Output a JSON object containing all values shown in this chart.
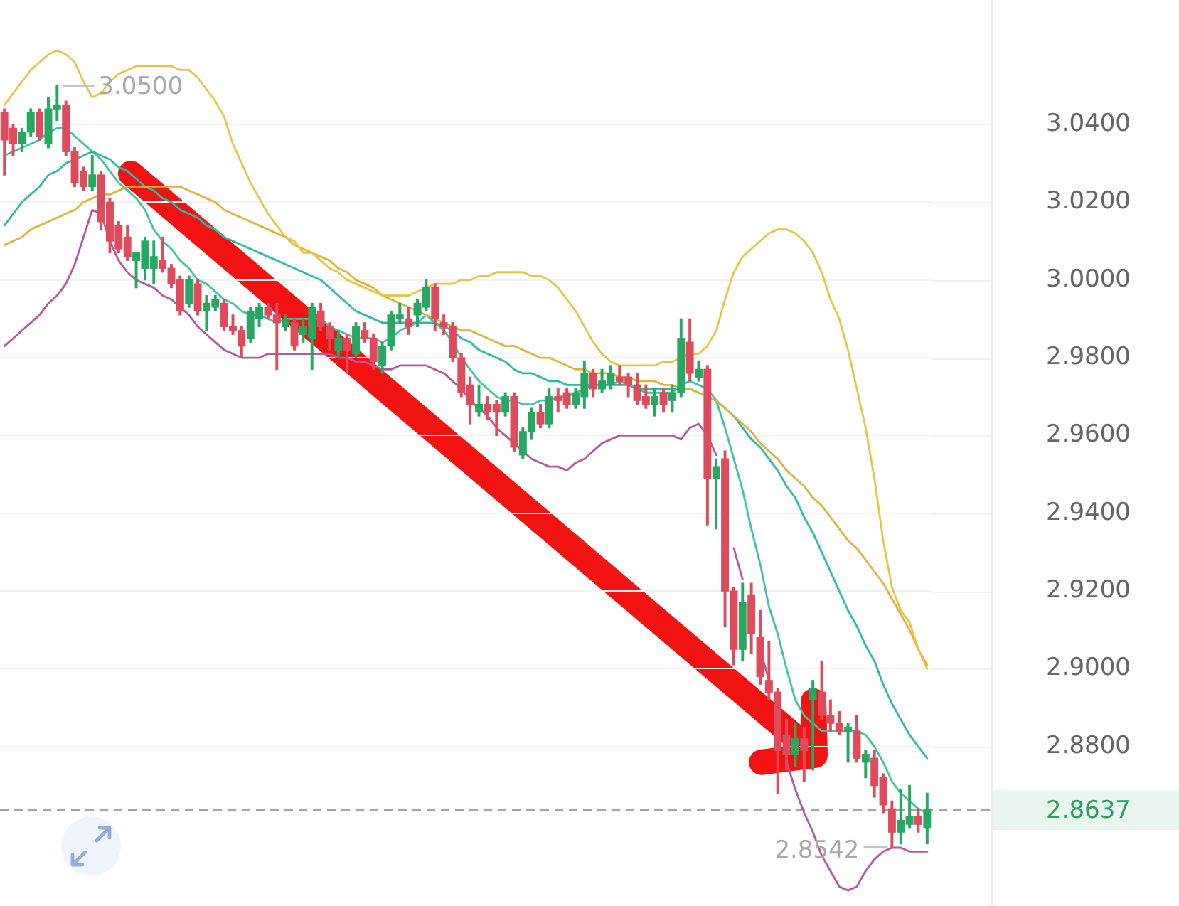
{
  "chart_data": {
    "type": "candlestick",
    "categories": [
      null,
      null,
      null,
      null,
      null,
      null,
      null,
      null,
      null,
      null,
      null,
      null,
      null,
      null,
      null,
      null,
      null,
      null,
      null,
      null,
      null,
      null,
      null,
      null,
      null,
      null,
      null,
      null,
      null,
      null,
      null,
      null,
      null,
      null,
      null,
      null,
      null,
      null,
      null,
      null,
      null,
      null,
      null,
      null,
      null,
      null,
      null,
      null,
      null,
      null,
      null,
      null,
      null,
      null,
      null,
      null,
      null,
      null,
      null,
      null,
      null,
      null,
      null,
      null,
      null,
      null,
      null,
      null,
      null,
      null,
      null,
      null,
      null,
      null,
      null,
      null,
      null,
      null,
      null,
      null,
      null,
      null,
      null,
      null,
      null,
      null,
      null,
      null,
      null,
      null,
      null,
      null,
      null,
      null,
      null,
      null,
      null,
      null,
      null,
      null,
      null,
      null,
      null,
      null,
      null,
      null
    ],
    "series": [
      {
        "type": "line",
        "color": "#e6c545",
        "values": [
          3.045,
          3.048,
          3.051,
          3.054,
          3.056,
          3.058,
          3.059,
          3.058,
          3.056,
          3.051,
          3.047,
          3.048,
          3.051,
          3.053,
          3.054,
          3.055,
          3.055,
          3.055,
          3.055,
          3.055,
          3.054,
          3.054,
          3.052,
          3.049,
          3.046,
          3.042,
          3.035,
          3.03,
          3.025,
          3.021,
          3.017,
          3.014,
          3.011,
          3.01,
          3.007,
          3.007,
          3.005,
          3.003,
          3.002,
          3,
          2.999,
          2.998,
          2.997,
          2.996,
          2.996,
          2.996,
          2.996,
          2.997,
          2.998,
          2.999,
          2.999,
          2.999,
          3,
          3,
          3.001,
          3.001,
          3.002,
          3.002,
          3.002,
          3.002,
          3.001,
          3.001,
          3,
          2.998,
          2.995,
          2.992,
          2.988,
          2.984,
          2.981,
          2.979,
          2.978,
          2.978,
          2.978,
          2.978,
          2.978,
          2.979,
          2.979,
          2.98,
          2.981,
          2.981,
          2.983,
          2.987,
          2.995,
          3.002,
          3.006,
          3.008,
          3.01,
          3.012,
          3.013,
          3.013,
          3.012,
          3.01,
          3.007,
          3.002,
          2.995,
          2.99,
          2.982,
          2.972,
          2.962,
          2.949,
          2.933,
          2.921,
          2.915,
          2.912,
          2.905,
          2.9
        ]
      },
      {
        "type": "line",
        "color": "#dcb43c",
        "values": [
          3.009,
          3.01,
          3.011,
          3.013,
          3.014,
          3.015,
          3.016,
          3.017,
          3.018,
          3.02,
          3.021,
          3.022,
          3.022,
          3.023,
          3.024,
          3.024,
          3.024,
          3.024,
          3.024,
          3.024,
          3.024,
          3.023,
          3.022,
          3.021,
          3.02,
          3.018,
          3.017,
          3.016,
          3.015,
          3.014,
          3.013,
          3.012,
          3.011,
          3.009,
          3.008,
          3.007,
          3.006,
          3.005,
          3.003,
          3.002,
          3,
          2.999,
          2.998,
          2.996,
          2.995,
          2.994,
          2.993,
          2.992,
          2.991,
          2.99,
          2.989,
          2.988,
          2.987,
          2.987,
          2.986,
          2.985,
          2.984,
          2.983,
          2.983,
          2.982,
          2.981,
          2.98,
          2.98,
          2.979,
          2.978,
          2.977,
          2.977,
          2.976,
          2.976,
          2.976,
          2.975,
          2.975,
          2.974,
          2.974,
          2.974,
          2.973,
          2.973,
          2.972,
          2.972,
          2.971,
          2.97,
          2.969,
          2.967,
          2.965,
          2.963,
          2.961,
          2.958,
          2.956,
          2.954,
          2.951,
          2.949,
          2.947,
          2.944,
          2.942,
          2.939,
          2.936,
          2.933,
          2.931,
          2.928,
          2.925,
          2.922,
          2.918,
          2.914,
          2.91,
          2.905,
          2.901
        ]
      },
      {
        "type": "line",
        "color": "#2fb9ab",
        "values": [
          3.014,
          3.017,
          3.02,
          3.022,
          3.024,
          3.027,
          3.028,
          3.03,
          3.031,
          3.032,
          3.033,
          3.032,
          3.031,
          3.029,
          3.028,
          3.026,
          3.024,
          3.023,
          3.021,
          3.02,
          3.018,
          3.017,
          3.016,
          3.014,
          3.013,
          3.011,
          3.01,
          3.009,
          3.008,
          3.007,
          3.006,
          3.005,
          3.004,
          3.003,
          3.002,
          3.001,
          3,
          2.998,
          2.996,
          2.994,
          2.992,
          2.991,
          2.99,
          2.989,
          2.989,
          2.989,
          2.989,
          2.989,
          2.989,
          2.989,
          2.988,
          2.987,
          2.985,
          2.984,
          2.982,
          2.981,
          2.98,
          2.979,
          2.977,
          2.976,
          2.976,
          2.975,
          2.974,
          2.974,
          2.973,
          2.973,
          2.973,
          2.973,
          2.973,
          2.973,
          2.973,
          2.973,
          2.972,
          2.972,
          2.972,
          2.972,
          2.972,
          2.972,
          2.972,
          2.971,
          2.97,
          2.969,
          2.967,
          2.965,
          2.962,
          2.959,
          2.957,
          2.954,
          2.951,
          2.947,
          2.944,
          2.939,
          2.935,
          2.93,
          2.925,
          2.92,
          2.915,
          2.911,
          2.906,
          2.902,
          2.896,
          2.891,
          2.887,
          2.883,
          2.88,
          2.877
        ]
      },
      {
        "type": "line",
        "color": "#3cc6a2",
        "values": [
          3.032,
          3.033,
          3.034,
          3.035,
          3.036,
          3.038,
          3.039,
          3.039,
          3.037,
          3.035,
          3.033,
          3.031,
          3.028,
          3.025,
          3.023,
          3.021,
          3.018,
          3.013,
          3.01,
          3.008,
          3.005,
          3.003,
          3,
          2.999,
          2.997,
          2.995,
          2.994,
          2.992,
          2.991,
          2.991,
          2.99,
          2.989,
          2.99,
          2.99,
          2.99,
          2.99,
          2.99,
          2.988,
          2.987,
          2.986,
          2.985,
          2.985,
          2.985,
          2.984,
          2.985,
          2.987,
          2.988,
          2.989,
          2.991,
          2.989,
          2.987,
          2.984,
          2.98,
          2.977,
          2.974,
          2.972,
          2.97,
          2.969,
          2.969,
          2.968,
          2.968,
          2.969,
          2.969,
          2.97,
          2.97,
          2.971,
          2.972,
          2.973,
          2.973,
          2.973,
          2.974,
          2.973,
          2.972,
          2.971,
          2.971,
          2.971,
          2.971,
          2.973,
          2.974,
          2.973,
          2.972,
          2.969,
          2.962,
          2.954,
          2.946,
          2.936,
          2.927,
          2.916,
          2.909,
          2.9,
          2.892,
          2.888,
          2.886,
          2.884,
          2.884,
          2.884,
          2.884,
          2.884,
          2.883,
          2.88,
          2.876,
          2.871,
          2.868,
          2.866,
          2.864,
          2.863
        ]
      },
      {
        "type": "line",
        "color": "#b4599b",
        "values": [
          2.983,
          2.985,
          2.987,
          2.989,
          2.991,
          2.994,
          2.996,
          2.999,
          3.004,
          3.011,
          3.018,
          3.017,
          3.01,
          3.005,
          3.002,
          3,
          2.999,
          2.998,
          2.996,
          2.995,
          2.993,
          2.991,
          2.988,
          2.986,
          2.984,
          2.982,
          2.981,
          2.98,
          2.98,
          2.98,
          2.981,
          2.981,
          2.981,
          2.981,
          2.981,
          2.981,
          2.981,
          2.981,
          2.98,
          2.98,
          2.979,
          2.979,
          2.978,
          2.977,
          2.977,
          2.978,
          2.978,
          2.978,
          2.978,
          2.977,
          2.976,
          2.974,
          2.972,
          2.969,
          2.967,
          2.965,
          2.962,
          2.96,
          2.958,
          2.956,
          2.954,
          2.953,
          2.952,
          2.952,
          2.951,
          2.953,
          2.954,
          2.956,
          2.958,
          2.959,
          2.96,
          2.96,
          2.96,
          2.96,
          2.96,
          2.96,
          2.96,
          2.959,
          2.962,
          2.963,
          2.96,
          2.955,
          null,
          2.931,
          2.923,
          null,
          2.905,
          2.897,
          null,
          2.876,
          2.869,
          2.863,
          2.858,
          2.852,
          2.848,
          2.844,
          2.843,
          2.844,
          2.848,
          2.851,
          2.853,
          2.854,
          2.854,
          2.853,
          2.853,
          2.853
        ]
      },
      {
        "type": "candlestick",
        "ohlc": [
          [
            3.043,
            3.044,
            3.027,
            3.036
          ],
          [
            3.039,
            3.04,
            3.032,
            3.035
          ],
          [
            3.035,
            3.039,
            3.033,
            3.038
          ],
          [
            3.038,
            3.044,
            3.037,
            3.043
          ],
          [
            3.043,
            3.044,
            3.036,
            3.037
          ],
          [
            3.035,
            3.047,
            3.034,
            3.044
          ],
          [
            3.044,
            3.05,
            3.041,
            3.045
          ],
          [
            3.045,
            3.046,
            3.032,
            3.033
          ],
          [
            3.033,
            3.034,
            3.024,
            3.025
          ],
          [
            3.028,
            3.029,
            3.023,
            3.024
          ],
          [
            3.024,
            3.032,
            3.023,
            3.027
          ],
          [
            3.027,
            3.028,
            3.013,
            3.015
          ],
          [
            3.02,
            3.021,
            3.007,
            3.01
          ],
          [
            3.014,
            3.015,
            3.007,
            3.008
          ],
          [
            3.011,
            3.014,
            3.005,
            3.006
          ],
          [
            3.005,
            3.007,
            2.998,
            3.007
          ],
          [
            3.003,
            3.011,
            3,
            3.01
          ],
          [
            3.003,
            3.01,
            2.999,
            3.006
          ],
          [
            3.005,
            3.011,
            3.002,
            3.003
          ],
          [
            3.003,
            3.004,
            2.998,
            2.999
          ],
          [
            3,
            3.001,
            2.991,
            2.992
          ],
          [
            2.994,
            3.001,
            2.993,
            3
          ],
          [
            2.999,
            3,
            2.991,
            2.992
          ],
          [
            2.992,
            2.996,
            2.987,
            2.994
          ],
          [
            2.993,
            2.996,
            2.992,
            2.995
          ],
          [
            2.994,
            2.995,
            2.987,
            2.988
          ],
          [
            2.988,
            2.991,
            2.986,
            2.987
          ],
          [
            2.987,
            2.988,
            2.98,
            2.983
          ],
          [
            2.985,
            2.993,
            2.984,
            2.992
          ],
          [
            2.99,
            2.994,
            2.988,
            2.993
          ],
          [
            2.993,
            2.994,
            2.99,
            2.991
          ],
          [
            2.991,
            2.994,
            2.977,
            2.989
          ],
          [
            2.988,
            2.991,
            2.987,
            2.99
          ],
          [
            2.989,
            2.99,
            2.982,
            2.983
          ],
          [
            2.986,
            2.99,
            2.984,
            2.988
          ],
          [
            2.985,
            2.994,
            2.977,
            2.993
          ],
          [
            2.992,
            2.994,
            2.987,
            2.988
          ],
          [
            2.988,
            2.989,
            2.982,
            2.985
          ],
          [
            2.982,
            2.987,
            2.98,
            2.985
          ],
          [
            2.985,
            2.986,
            2.976,
            2.982
          ],
          [
            2.981,
            2.989,
            2.98,
            2.988
          ],
          [
            2.987,
            2.989,
            2.984,
            2.985
          ],
          [
            2.985,
            2.986,
            2.977,
            2.979
          ],
          [
            2.978,
            2.984,
            2.976,
            2.983
          ],
          [
            2.983,
            2.992,
            2.982,
            2.991
          ],
          [
            2.99,
            2.994,
            2.989,
            2.991
          ],
          [
            2.99,
            2.993,
            2.986,
            2.988
          ],
          [
            2.991,
            2.995,
            2.988,
            2.994
          ],
          [
            2.993,
            3,
            2.992,
            2.998
          ],
          [
            2.998,
            2.999,
            2.987,
            2.99
          ],
          [
            2.989,
            2.991,
            2.986,
            2.988
          ],
          [
            2.988,
            2.989,
            2.979,
            2.98
          ],
          [
            2.98,
            2.981,
            2.97,
            2.971
          ],
          [
            2.973,
            2.975,
            2.963,
            2.968
          ],
          [
            2.966,
            2.973,
            2.965,
            2.968
          ],
          [
            2.968,
            2.97,
            2.964,
            2.966
          ],
          [
            2.968,
            2.969,
            2.96,
            2.966
          ],
          [
            2.966,
            2.971,
            2.965,
            2.97
          ],
          [
            2.97,
            2.971,
            2.956,
            2.957
          ],
          [
            2.955,
            2.962,
            2.954,
            2.961
          ],
          [
            2.961,
            2.967,
            2.959,
            2.966
          ],
          [
            2.966,
            2.968,
            2.962,
            2.963
          ],
          [
            2.963,
            2.972,
            2.962,
            2.97
          ],
          [
            2.97,
            2.972,
            2.966,
            2.969
          ],
          [
            2.971,
            2.972,
            2.967,
            2.968
          ],
          [
            2.968,
            2.972,
            2.967,
            2.971
          ],
          [
            2.97,
            2.979,
            2.967,
            2.976
          ],
          [
            2.976,
            2.977,
            2.97,
            2.972
          ],
          [
            2.972,
            2.977,
            2.971,
            2.974
          ],
          [
            2.973,
            2.978,
            2.972,
            2.976
          ],
          [
            2.975,
            2.978,
            2.973,
            2.974
          ],
          [
            2.975,
            2.976,
            2.97,
            2.973
          ],
          [
            2.973,
            2.976,
            2.968,
            2.969
          ],
          [
            2.97,
            2.973,
            2.967,
            2.968
          ],
          [
            2.968,
            2.972,
            2.965,
            2.97
          ],
          [
            2.971,
            2.972,
            2.966,
            2.968
          ],
          [
            2.969,
            2.973,
            2.966,
            2.971
          ],
          [
            2.971,
            2.99,
            2.97,
            2.985
          ],
          [
            2.984,
            2.99,
            2.974,
            2.976
          ],
          [
            2.975,
            2.979,
            2.974,
            2.977
          ],
          [
            2.977,
            2.978,
            2.937,
            2.949
          ],
          [
            2.949,
            2.954,
            2.936,
            2.952
          ],
          [
            2.954,
            2.956,
            2.911,
            2.92
          ],
          [
            2.92,
            2.921,
            2.901,
            2.905
          ],
          [
            2.905,
            2.922,
            2.902,
            2.917
          ],
          [
            2.919,
            2.922,
            2.904,
            2.909
          ],
          [
            2.908,
            2.915,
            2.896,
            2.898
          ],
          [
            2.897,
            2.907,
            2.892,
            2.894
          ],
          [
            2.894,
            2.895,
            2.868,
            2.879
          ],
          [
            2.883,
            2.887,
            2.874,
            2.878
          ],
          [
            2.878,
            2.886,
            2.875,
            2.882
          ],
          [
            2.882,
            2.885,
            2.871,
            2.879
          ],
          [
            2.892,
            2.897,
            2.874,
            2.895
          ],
          [
            2.894,
            2.902,
            2.887,
            2.888
          ],
          [
            2.888,
            2.892,
            2.884,
            2.886
          ],
          [
            2.886,
            2.889,
            2.883,
            2.884
          ],
          [
            2.884,
            2.886,
            2.876,
            2.885
          ],
          [
            2.884,
            2.888,
            2.876,
            2.877
          ],
          [
            2.876,
            2.879,
            2.872,
            2.878
          ],
          [
            2.877,
            2.879,
            2.867,
            2.87
          ],
          [
            2.872,
            2.873,
            2.863,
            2.865
          ],
          [
            2.864,
            2.866,
            2.8542,
            2.858
          ],
          [
            2.858,
            2.869,
            2.855,
            2.861
          ],
          [
            2.86,
            2.87,
            2.859,
            2.862
          ],
          [
            2.862,
            2.864,
            2.858,
            2.86
          ],
          [
            2.859,
            2.868,
            2.855,
            2.8637
          ]
        ],
        "colors": [
          "#dd4b5c",
          "#dd4b5c",
          "#26a862",
          "#26a862",
          "#dd4b5c",
          "#26a862",
          "#26a862",
          "#dd4b5c",
          "#dd4b5c",
          "#dd4b5c",
          "#26a862",
          "#dd4b5c",
          "#dd4b5c",
          "#dd4b5c",
          "#dd4b5c",
          "#26a862",
          "#26a862",
          "#26a862",
          "#dd4b5c",
          "#dd4b5c",
          "#dd4b5c",
          "#26a862",
          "#dd4b5c",
          "#26a862",
          "#26a862",
          "#dd4b5c",
          "#dd4b5c",
          "#dd4b5c",
          "#26a862",
          "#26a862",
          "#dd4b5c",
          "#dd4b5c",
          "#26a862",
          "#dd4b5c",
          "#26a862",
          "#26a862",
          "#dd4b5c",
          "#dd4b5c",
          "#26a862",
          "#dd4b5c",
          "#26a862",
          "#dd4b5c",
          "#dd4b5c",
          "#26a862",
          "#26a862",
          "#26a862",
          "#dd4b5c",
          "#26a862",
          "#26a862",
          "#dd4b5c",
          "#dd4b5c",
          "#dd4b5c",
          "#dd4b5c",
          "#dd4b5c",
          "#26a862",
          "#dd4b5c",
          "#dd4b5c",
          "#26a862",
          "#dd4b5c",
          "#26a862",
          "#26a862",
          "#dd4b5c",
          "#26a862",
          "#dd4b5c",
          "#dd4b5c",
          "#26a862",
          "#26a862",
          "#dd4b5c",
          "#26a862",
          "#26a862",
          "#dd4b5c",
          "#dd4b5c",
          "#dd4b5c",
          "#dd4b5c",
          "#26a862",
          "#dd4b5c",
          "#26a862",
          "#26a862",
          "#dd4b5c",
          "#26a862",
          "#dd4b5c",
          "#26a862",
          "#dd4b5c",
          "#dd4b5c",
          "#26a862",
          "#dd4b5c",
          "#dd4b5c",
          "#dd4b5c",
          "#dd4b5c",
          "#dd4b5c",
          "#26a862",
          "#dd4b5c",
          "#26a862",
          "#dd4b5c",
          "#dd4b5c",
          "#dd4b5c",
          "#26a862",
          "#dd4b5c",
          "#26a862",
          "#dd4b5c",
          "#dd4b5c",
          "#dd4b5c",
          "#26a862",
          "#26a862",
          "#dd4b5c",
          "#26a862"
        ]
      }
    ],
    "ylim": [
      2.839,
      3.072
    ],
    "yticks": [
      {
        "value": 2.88,
        "label": "2.8800"
      },
      {
        "value": 2.9,
        "label": "2.9000"
      },
      {
        "value": 2.92,
        "label": "2.9200"
      },
      {
        "value": 2.94,
        "label": "2.9400"
      },
      {
        "value": 2.96,
        "label": "2.9600"
      },
      {
        "value": 2.98,
        "label": "2.9800"
      },
      {
        "value": 3.0,
        "label": "3.0000"
      },
      {
        "value": 3.02,
        "label": "3.0200"
      },
      {
        "value": 3.04,
        "label": "3.0400"
      }
    ],
    "grid": "y",
    "tick_labels": "y",
    "marker": "none",
    "ref_lines": [
      {
        "axis": "y",
        "value": 2.8637,
        "label": "2.8637",
        "color": "#a3a3a3",
        "line_style": "dashed"
      }
    ],
    "annotations": [
      "3.0500",
      "2.8542"
    ]
  }
}
